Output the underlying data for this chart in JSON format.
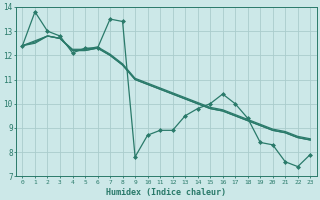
{
  "xlabel": "Humidex (Indice chaleur)",
  "ylabel": "",
  "xlim": [
    -0.5,
    23.5
  ],
  "ylim": [
    7,
    14
  ],
  "yticks": [
    7,
    8,
    9,
    10,
    11,
    12,
    13,
    14
  ],
  "xticks": [
    0,
    1,
    2,
    3,
    4,
    5,
    6,
    7,
    8,
    9,
    10,
    11,
    12,
    13,
    14,
    15,
    16,
    17,
    18,
    19,
    20,
    21,
    22,
    23
  ],
  "bg_color": "#cce8e8",
  "line_color": "#2a7a6a",
  "grid_color": "#aacccc",
  "series_main": [
    12.4,
    13.8,
    13.0,
    12.8,
    12.1,
    12.3,
    12.3,
    13.5,
    13.4,
    7.8,
    8.7,
    8.9,
    8.9,
    9.5,
    9.8,
    10.0,
    10.4,
    10.0,
    9.4,
    8.4,
    8.3,
    7.6,
    7.4,
    7.9
  ],
  "series_reg": [
    [
      12.4,
      12.6,
      12.8,
      12.7,
      12.2,
      12.2,
      12.3,
      12.0,
      11.6,
      11.0,
      10.8,
      10.6,
      10.4,
      10.2,
      10.0,
      9.8,
      9.7,
      9.5,
      9.3,
      9.1,
      8.9,
      8.8,
      8.6,
      8.5
    ],
    [
      12.4,
      12.55,
      12.8,
      12.7,
      12.25,
      12.25,
      12.35,
      12.05,
      11.65,
      11.05,
      10.85,
      10.65,
      10.45,
      10.25,
      10.05,
      9.85,
      9.75,
      9.55,
      9.35,
      9.15,
      8.95,
      8.85,
      8.65,
      8.55
    ],
    [
      12.4,
      12.5,
      12.8,
      12.7,
      12.2,
      12.2,
      12.3,
      12.0,
      11.6,
      11.0,
      10.8,
      10.6,
      10.4,
      10.2,
      10.0,
      9.8,
      9.7,
      9.5,
      9.3,
      9.1,
      8.9,
      8.8,
      8.6,
      8.5
    ]
  ],
  "marker": "D",
  "markersize": 2,
  "linewidth": 0.9
}
